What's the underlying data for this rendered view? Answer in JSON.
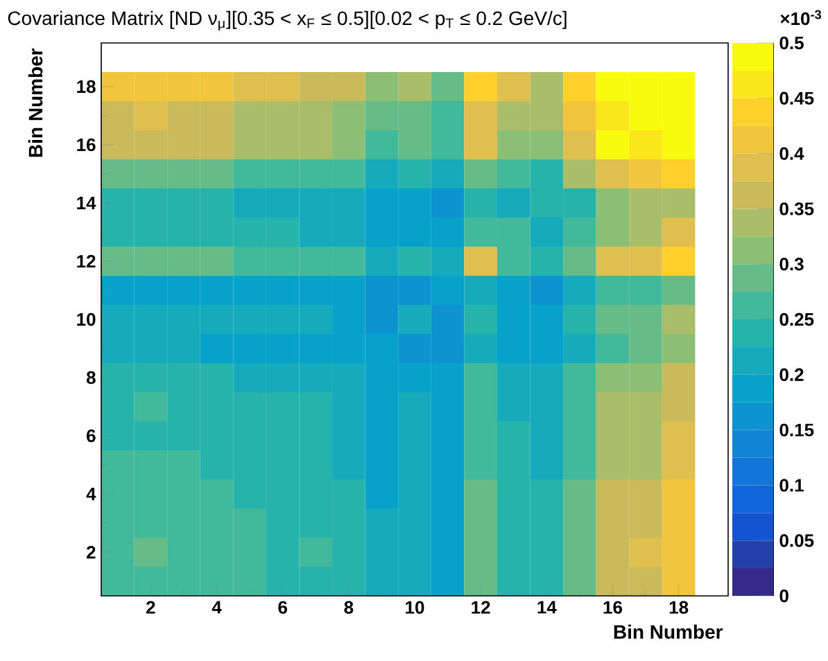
{
  "chart_data": {
    "type": "heatmap",
    "title": "Covariance Matrix [ND ν$_{μ}$][0.35 < x$_{F}$ ≤ 0.5][0.02 < p$_{T}$ ≤ 0.2 GeV/c]",
    "xlabel": "Bin Number",
    "ylabel": "Bin Number",
    "annotations": [
      "×10$^{-3}$"
    ],
    "categories": [
      null,
      "2",
      null,
      "4",
      null,
      "6",
      null,
      "8",
      null,
      "10",
      null,
      "12",
      null,
      "14",
      null,
      "16",
      null,
      "18"
    ],
    "y_categories": [
      "18",
      null,
      "16",
      null,
      "14",
      null,
      "12",
      null,
      "10",
      null,
      "8",
      null,
      "6",
      null,
      "4",
      null,
      "2",
      null
    ],
    "clim": [
      0,
      0.5
    ],
    "cticks": [
      0,
      0.05,
      0.1,
      0.15,
      0.2,
      0.25,
      0.3,
      0.35,
      0.4,
      0.45,
      0.5
    ],
    "cells": [
      [
        0.4125,
        0.4125,
        0.4125,
        0.4125,
        0.3875,
        0.3875,
        0.3625,
        0.3625,
        0.3125,
        0.3375,
        0.2875,
        0.4375,
        0.3875,
        0.3375,
        0.4375,
        0.4875,
        0.4875,
        0.4875
      ],
      [
        0.3625,
        0.3875,
        0.3625,
        0.3625,
        0.3375,
        0.3375,
        0.3375,
        0.3125,
        0.2875,
        0.2875,
        0.2625,
        0.3875,
        0.3375,
        0.3375,
        0.4125,
        0.4625,
        0.4875,
        0.4875
      ],
      [
        0.3625,
        0.3625,
        0.3625,
        0.3625,
        0.3375,
        0.3375,
        0.3375,
        0.3125,
        0.2625,
        0.2875,
        0.2625,
        0.3875,
        0.3125,
        0.3125,
        0.3875,
        0.4875,
        0.4625,
        0.4875
      ],
      [
        0.2875,
        0.2875,
        0.2875,
        0.2875,
        0.2625,
        0.2625,
        0.2625,
        0.2625,
        0.2125,
        0.2375,
        0.2125,
        0.2875,
        0.2625,
        0.2375,
        0.3375,
        0.3875,
        0.4125,
        0.4375
      ],
      [
        0.2375,
        0.2375,
        0.2375,
        0.2375,
        0.2125,
        0.2125,
        0.2125,
        0.2125,
        0.1875,
        0.1875,
        0.1625,
        0.2375,
        0.2125,
        0.2375,
        0.2375,
        0.3125,
        0.3375,
        0.3375
      ],
      [
        0.2375,
        0.2375,
        0.2375,
        0.2375,
        0.2375,
        0.2375,
        0.2125,
        0.2125,
        0.1875,
        0.1875,
        0.1875,
        0.2625,
        0.2625,
        0.2125,
        0.2625,
        0.3125,
        0.3375,
        0.3875
      ],
      [
        0.2875,
        0.2875,
        0.2875,
        0.2875,
        0.2625,
        0.2625,
        0.2625,
        0.2625,
        0.2125,
        0.2375,
        0.2125,
        0.3875,
        0.2625,
        0.2375,
        0.2875,
        0.3875,
        0.3875,
        0.4375
      ],
      [
        0.1875,
        0.1875,
        0.1875,
        0.1875,
        0.1875,
        0.1875,
        0.1875,
        0.1875,
        0.1625,
        0.1625,
        0.1875,
        0.2125,
        0.1875,
        0.1625,
        0.2125,
        0.2625,
        0.2625,
        0.2875
      ],
      [
        0.2125,
        0.2125,
        0.2125,
        0.2125,
        0.2125,
        0.2125,
        0.2125,
        0.1875,
        0.1625,
        0.2125,
        0.1625,
        0.2375,
        0.1875,
        0.1875,
        0.2375,
        0.2875,
        0.2875,
        0.3375
      ],
      [
        0.2125,
        0.2125,
        0.2125,
        0.1875,
        0.1875,
        0.1875,
        0.1875,
        0.1875,
        0.1875,
        0.1625,
        0.1625,
        0.2125,
        0.1875,
        0.1875,
        0.2125,
        0.2625,
        0.2875,
        0.3125
      ],
      [
        0.2375,
        0.2375,
        0.2375,
        0.2375,
        0.2125,
        0.2125,
        0.2125,
        0.2125,
        0.1875,
        0.1875,
        0.1875,
        0.2625,
        0.2125,
        0.2125,
        0.2625,
        0.3125,
        0.3125,
        0.3625
      ],
      [
        0.2375,
        0.2625,
        0.2375,
        0.2375,
        0.2375,
        0.2375,
        0.2375,
        0.2125,
        0.1875,
        0.2125,
        0.1875,
        0.2625,
        0.2125,
        0.2125,
        0.2625,
        0.3375,
        0.3375,
        0.3625
      ],
      [
        0.2375,
        0.2375,
        0.2375,
        0.2375,
        0.2375,
        0.2375,
        0.2375,
        0.2125,
        0.1875,
        0.2125,
        0.1875,
        0.2625,
        0.2375,
        0.2125,
        0.2625,
        0.3375,
        0.3375,
        0.3875
      ],
      [
        0.2625,
        0.2625,
        0.2625,
        0.2375,
        0.2375,
        0.2375,
        0.2375,
        0.2125,
        0.1875,
        0.2125,
        0.1875,
        0.2625,
        0.2375,
        0.2125,
        0.2625,
        0.3375,
        0.3375,
        0.3875
      ],
      [
        0.2625,
        0.2625,
        0.2625,
        0.2625,
        0.2375,
        0.2375,
        0.2375,
        0.2375,
        0.1875,
        0.2125,
        0.1875,
        0.2875,
        0.2375,
        0.2375,
        0.2875,
        0.3625,
        0.3625,
        0.4125
      ],
      [
        0.2625,
        0.2625,
        0.2625,
        0.2625,
        0.2625,
        0.2375,
        0.2375,
        0.2375,
        0.2125,
        0.2125,
        0.1875,
        0.2875,
        0.2375,
        0.2375,
        0.2875,
        0.3625,
        0.3625,
        0.4125
      ],
      [
        0.2625,
        0.2875,
        0.2625,
        0.2625,
        0.2625,
        0.2375,
        0.2625,
        0.2375,
        0.2125,
        0.2125,
        0.1875,
        0.2875,
        0.2375,
        0.2375,
        0.2875,
        0.3625,
        0.3875,
        0.4125
      ],
      [
        0.2625,
        0.2625,
        0.2625,
        0.2625,
        0.2625,
        0.2375,
        0.2375,
        0.2375,
        0.2125,
        0.2125,
        0.1875,
        0.2875,
        0.2375,
        0.2375,
        0.2875,
        0.3625,
        0.3625,
        0.4125
      ]
    ]
  }
}
